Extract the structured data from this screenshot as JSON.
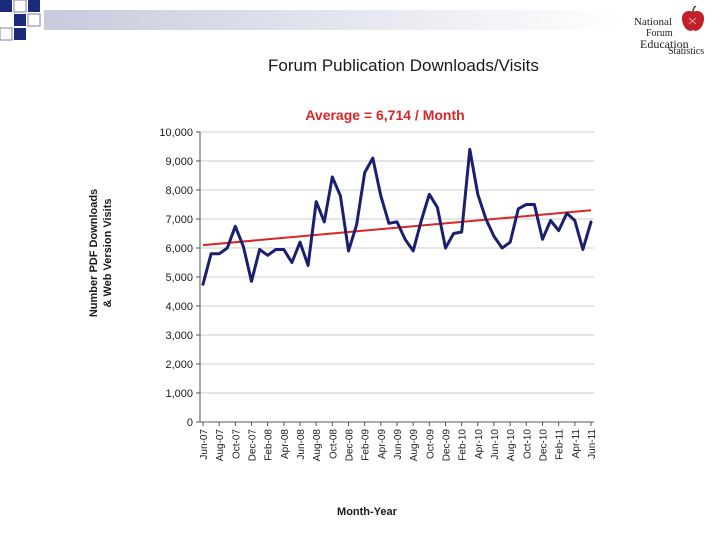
{
  "slide": {
    "title": "Forum Publication Downloads/Visits"
  },
  "logo": {
    "line1": "National",
    "line2": "Forum",
    "line3": "Education",
    "line4": "Statistics",
    "apple_icon": "apple-icon"
  },
  "colors": {
    "series": "#1c1f6e",
    "trend": "#d92626",
    "annotation": "#d92626",
    "corner_squares": "#1c2a7a"
  },
  "chart_data": {
    "type": "line",
    "annotation": "Average = 6,714 / Month",
    "ylabel_line1": "Number  PDF Downloads",
    "ylabel_line2": "& Web Version Visits",
    "xlabel": "Month-Year",
    "ylim": [
      0,
      10000
    ],
    "yticks": [
      0,
      1000,
      2000,
      3000,
      4000,
      5000,
      6000,
      7000,
      8000,
      9000,
      10000
    ],
    "ytick_labels": [
      "0",
      "1,000",
      "2,000",
      "3,000",
      "4,000",
      "5,000",
      "6,000",
      "7,000",
      "8,000",
      "9,000",
      "10,000"
    ],
    "grid": true,
    "legend": "none",
    "x_tick_labels": [
      "Jun-07",
      "Aug-07",
      "Oct-07",
      "Dec-07",
      "Feb-08",
      "Apr-08",
      "Jun-08",
      "Aug-08",
      "Oct-08",
      "Dec-08",
      "Feb-09",
      "Apr-09",
      "Jun-09",
      "Aug-09",
      "Oct-09",
      "Dec-09",
      "Feb-10",
      "Apr-10",
      "Jun-10",
      "Aug-10",
      "Oct-10",
      "Dec-10",
      "Feb-11",
      "Apr-11",
      "Jun-11"
    ],
    "series": [
      {
        "values": [
          4750,
          5800,
          5800,
          6000,
          6750,
          6050,
          4850,
          5950,
          5750,
          5950,
          5950,
          5500,
          6200,
          5400,
          7600,
          6900,
          8450,
          7800,
          5900,
          6800,
          8600,
          9100,
          7800,
          6850,
          6900,
          6300,
          5900,
          6950,
          7850,
          7400,
          6000,
          6500,
          6550,
          9400,
          7850,
          7000,
          6400,
          6000,
          6200,
          7350,
          7500,
          7500,
          6300,
          6950,
          6600,
          7200,
          6950,
          5950,
          6900
        ]
      },
      {
        "values": [
          6100,
          7300
        ]
      }
    ]
  }
}
